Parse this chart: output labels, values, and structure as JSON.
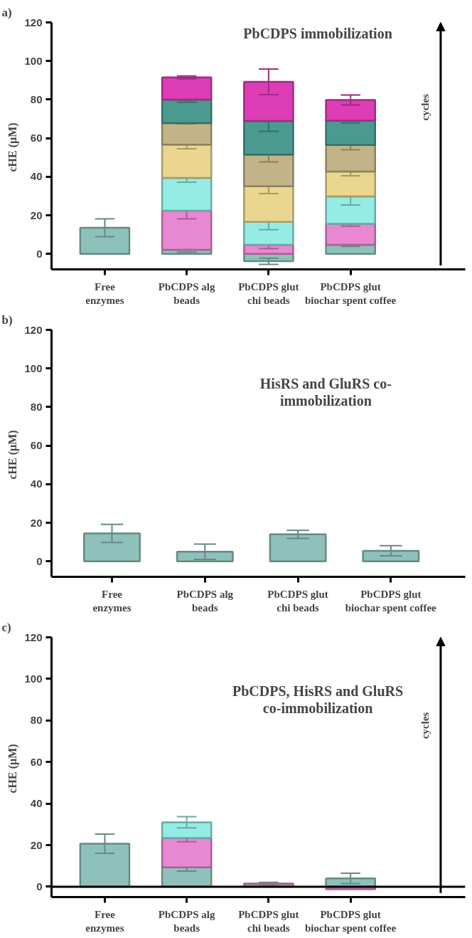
{
  "chart_data": [
    {
      "type": "bar",
      "stacked": true,
      "title": "PbCDPS immobilization",
      "ylabel": "cHE  (µM)",
      "categories": [
        "Free enzymes",
        "PbCDPS alg beads",
        "PbCDPS glut chi beads",
        "PbCDPS glut biochar spent coffee"
      ],
      "series": [
        {
          "color": "#8fc1bb",
          "values": [
            13.6,
            2.1,
            -3.8,
            4.7
          ],
          "errors": [
            4.6,
            1.2,
            1.6,
            0.8
          ]
        },
        {
          "color": "#e887d2",
          "values": [
            null,
            20.3,
            4.7,
            10.9
          ],
          "errors": [
            null,
            4.2,
            1.9,
            1.2
          ]
        },
        {
          "color": "#94ece4",
          "values": [
            null,
            17,
            11.9,
            14.2
          ],
          "errors": [
            null,
            2.2,
            4,
            4.4
          ]
        },
        {
          "color": "#ead68f",
          "values": [
            null,
            17.2,
            18.5,
            12.9
          ],
          "errors": [
            null,
            2.1,
            3.8,
            2.2
          ]
        },
        {
          "color": "#c2b488",
          "values": [
            null,
            11.2,
            16.4,
            13.8
          ],
          "errors": [
            null,
            0.4,
            3.8,
            2.5
          ]
        },
        {
          "color": "#4a9a90",
          "values": [
            null,
            12.2,
            17.4,
            12.6
          ],
          "errors": [
            null,
            1.3,
            5.3,
            1.2
          ]
        },
        {
          "color": "#dd3db5",
          "values": [
            null,
            11.5,
            20.3,
            10.7
          ],
          "errors": [
            null,
            0.7,
            6.6,
            2.6
          ]
        }
      ],
      "ylim": [
        -8,
        120
      ],
      "yticks": [
        0,
        20,
        40,
        60,
        80,
        100,
        120
      ],
      "grid": false,
      "annotations": [
        "a)",
        "cycles"
      ]
    },
    {
      "type": "bar",
      "title": "HisRS and GluRS co-immobilization",
      "ylabel": "cHE  (µM)",
      "categories": [
        "Free enzymes",
        "PbCDPS alg beads",
        "PbCDPS glut chi beads",
        "PbCDPS glut biochar spent coffee"
      ],
      "series": [
        {
          "color": "#8fc1bb",
          "values": [
            14.5,
            5,
            14,
            5.5
          ],
          "errors": [
            4.7,
            4,
            2.1,
            2.6
          ]
        }
      ],
      "ylim": [
        -8,
        120
      ],
      "yticks": [
        0,
        20,
        40,
        60,
        80,
        100,
        120
      ],
      "grid": false,
      "annotations": [
        "b)"
      ]
    },
    {
      "type": "bar",
      "stacked": true,
      "title": "PbCDPS, HisRS and GluRS co-immobilization",
      "ylabel": "cHE  (µM)",
      "categories": [
        "Free enzymes",
        "PbCDPS alg beads",
        "PbCDPS glut chi beads",
        "PbCDPS glut biochar spent coffee"
      ],
      "series": [
        {
          "color": "#8fc1bb",
          "values": [
            20.7,
            9.3,
            1.3,
            4
          ],
          "errors": [
            4.6,
            1.8,
            0.8,
            2.5
          ]
        },
        {
          "color": "#e887d2",
          "values": [
            null,
            14.1,
            0.2,
            -1.2
          ],
          "errors": [
            null,
            1.8,
            null,
            null
          ]
        },
        {
          "color": "#94ece4",
          "values": [
            null,
            7.6,
            null,
            null
          ],
          "errors": [
            null,
            2.7,
            null,
            null
          ]
        }
      ],
      "ylim": [
        -5,
        120
      ],
      "yticks": [
        0,
        20,
        40,
        60,
        80,
        100,
        120
      ],
      "grid": false,
      "ref_lines": [
        {
          "axis": "y",
          "value": 0
        }
      ],
      "annotations": [
        "c)",
        "cycles"
      ]
    }
  ]
}
